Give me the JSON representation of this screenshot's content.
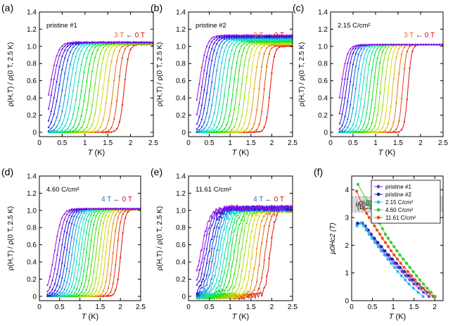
{
  "chart_data": [
    {
      "type": "line",
      "panel_label": "(a)",
      "sample_label": "pristine #1",
      "field_label": {
        "high": "3 T",
        "arrow": "←",
        "low": "0 T"
      },
      "title": "",
      "xlabel": "T (K)",
      "ylabel": "ρ(H,T) / ρ(0 T, 2.5 K)",
      "xlim": [
        0,
        2.5
      ],
      "ylim": [
        -0.05,
        1.4
      ],
      "xticks": [
        0,
        0.5,
        1.0,
        1.5,
        2.0,
        2.5
      ],
      "yticks": [
        0,
        0.2,
        0.4,
        0.6,
        0.8,
        1.0,
        1.2,
        1.4
      ],
      "xtick_labels": [
        "0",
        "0.5",
        "1",
        "1.5",
        "2",
        "2.5"
      ],
      "ytick_labels": [
        "0",
        "0.2",
        "0.4",
        "0.6",
        "0.8",
        "1.0",
        "1.2",
        "1.4"
      ],
      "curve_count": 19,
      "transition_T": [
        1.86,
        1.73,
        1.62,
        1.5,
        1.4,
        1.3,
        1.21,
        1.11,
        1.02,
        0.93,
        0.84,
        0.75,
        0.67,
        0.59,
        0.51,
        0.43,
        0.36,
        0.29,
        0.23
      ],
      "transition_width": 0.05,
      "normal_state": 1.02,
      "normal_state_high": 1.05,
      "noise": 0.004
    },
    {
      "type": "line",
      "panel_label": "(b)",
      "sample_label": "pristine #2",
      "field_label": {
        "high": "3 T",
        "arrow": "←",
        "low": "0 T"
      },
      "title": "",
      "xlabel": "T (K)",
      "ylabel": "ρ(H,T) / ρ(0 T, 2.5 K)",
      "xlim": [
        0,
        2.5
      ],
      "ylim": [
        -0.05,
        1.4
      ],
      "xticks": [
        0,
        0.5,
        1.0,
        1.5,
        2.0,
        2.5
      ],
      "yticks": [
        0,
        0.2,
        0.4,
        0.6,
        0.8,
        1.0,
        1.2,
        1.4
      ],
      "xtick_labels": [
        "0",
        "0.5",
        "1",
        "1.5",
        "2",
        "2.5"
      ],
      "ytick_labels": [
        "0",
        "0.2",
        "0.4",
        "0.6",
        "0.8",
        "1.0",
        "1.2",
        "1.4"
      ],
      "curve_count": 19,
      "transition_T": [
        1.96,
        1.82,
        1.7,
        1.58,
        1.47,
        1.37,
        1.27,
        1.17,
        1.08,
        0.98,
        0.89,
        0.8,
        0.72,
        0.63,
        0.55,
        0.47,
        0.4,
        0.33,
        0.26
      ],
      "transition_width": 0.05,
      "normal_state": 1.0,
      "normal_state_high": 1.13,
      "noise": 0.004
    },
    {
      "type": "line",
      "panel_label": "(c)",
      "sample_label": "2.15 C/cm²",
      "field_label": {
        "high": "3 T",
        "arrow": "←",
        "low": "0 T"
      },
      "title": "",
      "xlabel": "T (K)",
      "ylabel": "ρ(H,T) / ρ(0 T, 2.5 K)",
      "xlim": [
        0,
        2.5
      ],
      "ylim": [
        -0.05,
        1.4
      ],
      "xticks": [
        0,
        0.5,
        1.0,
        1.5,
        2.0,
        2.5
      ],
      "yticks": [
        0,
        0.2,
        0.4,
        0.6,
        0.8,
        1.0,
        1.2,
        1.4
      ],
      "xtick_labels": [
        "0",
        "0.5",
        "1",
        "1.5",
        "2",
        "2.5"
      ],
      "ytick_labels": [
        "0",
        "0.2",
        "0.4",
        "0.6",
        "0.8",
        "1.0",
        "1.2",
        "1.4"
      ],
      "curve_count": 19,
      "transition_T": [
        1.72,
        1.6,
        1.49,
        1.38,
        1.29,
        1.2,
        1.11,
        1.03,
        0.95,
        0.87,
        0.79,
        0.71,
        0.64,
        0.56,
        0.49,
        0.42,
        0.35,
        0.29,
        0.23
      ],
      "transition_width": 0.04,
      "normal_state": 1.02,
      "normal_state_high": 1.02,
      "noise": 0.003
    },
    {
      "type": "line",
      "panel_label": "(d)",
      "sample_label": "4.60 C/cm²",
      "field_label": {
        "high": "4 T",
        "arrow": "←",
        "low": "0 T"
      },
      "title": "",
      "xlabel": "T (K)",
      "ylabel": "ρ(H,T) / ρ(0 T, 2.5 K)",
      "xlim": [
        0,
        2.5
      ],
      "ylim": [
        -0.05,
        1.4
      ],
      "xticks": [
        0,
        0.5,
        1.0,
        1.5,
        2.0,
        2.5
      ],
      "yticks": [
        0,
        0.2,
        0.4,
        0.6,
        0.8,
        1.0,
        1.2,
        1.4
      ],
      "xtick_labels": [
        "0",
        "0.5",
        "1",
        "1.5",
        "2",
        "2.5"
      ],
      "ytick_labels": [
        "0",
        "0.2",
        "0.4",
        "0.6",
        "0.8",
        "1.0",
        "1.2",
        "1.4"
      ],
      "curve_count": 22,
      "transition_T": [
        2.01,
        1.91,
        1.82,
        1.73,
        1.64,
        1.56,
        1.48,
        1.4,
        1.32,
        1.24,
        1.16,
        1.09,
        1.02,
        0.95,
        0.88,
        0.81,
        0.74,
        0.67,
        0.6,
        0.53,
        0.45,
        0.37
      ],
      "transition_width": 0.05,
      "normal_state": 1.01,
      "normal_state_high": 1.02,
      "noise": 0.004
    },
    {
      "type": "line",
      "panel_label": "(e)",
      "sample_label": "11.61 C/cm²",
      "field_label": {
        "high": "4 T",
        "arrow": "←",
        "low": "0 T"
      },
      "title": "",
      "xlabel": "T (K)",
      "ylabel": "ρ(H,T) / ρ(0 T, 2.5 K)",
      "xlim": [
        0,
        2.5
      ],
      "ylim": [
        -0.05,
        1.4
      ],
      "xticks": [
        0,
        0.5,
        1.0,
        1.5,
        2.0,
        2.5
      ],
      "yticks": [
        0,
        0.2,
        0.4,
        0.6,
        0.8,
        1.0,
        1.2,
        1.4
      ],
      "xtick_labels": [
        "0",
        "0.5",
        "1",
        "1.5",
        "2",
        "2.5"
      ],
      "ytick_labels": [
        "0",
        "0.2",
        "0.4",
        "0.6",
        "0.8",
        "1.0",
        "1.2",
        "1.4"
      ],
      "curve_count": 22,
      "transition_T": [
        1.96,
        1.84,
        1.73,
        1.63,
        1.53,
        1.44,
        1.35,
        1.26,
        1.18,
        1.1,
        1.02,
        0.95,
        0.88,
        0.81,
        0.74,
        0.68,
        0.61,
        0.55,
        0.49,
        0.42,
        0.36,
        0.3
      ],
      "transition_width": 0.06,
      "normal_state": 1.0,
      "normal_state_high": 1.03,
      "noise": 0.03
    },
    {
      "type": "line",
      "panel_label": "(f)",
      "title": "",
      "xlabel": "T (K)",
      "ylabel": "μ0Hc2 (T)",
      "xlim": [
        0,
        2.2
      ],
      "ylim": [
        0,
        4.5
      ],
      "xticks": [
        0,
        0.5,
        1.0,
        1.5,
        2.0
      ],
      "yticks": [
        0,
        1,
        2,
        3,
        4
      ],
      "xtick_labels": [
        "0",
        "0.5",
        "1",
        "1.5",
        "2"
      ],
      "ytick_labels": [
        "0",
        "1",
        "2",
        "3",
        "4"
      ],
      "pauli_band": {
        "ymin": 3.2,
        "ymax": 3.75,
        "label_top": "μ0HP",
        "label_bottom": "(BCS)"
      },
      "legend_position": "top-right",
      "series": [
        {
          "name": "pristine #1",
          "color": "#7a34d6",
          "x": [
            1.86,
            1.73,
            1.62,
            1.5,
            1.4,
            1.3,
            1.21,
            1.11,
            1.02,
            0.93,
            0.84,
            0.75,
            0.67,
            0.59,
            0.51,
            0.43,
            0.36,
            0.29,
            0.23,
            0.13
          ],
          "y": [
            0.15,
            0.3,
            0.45,
            0.6,
            0.75,
            0.9,
            1.05,
            1.2,
            1.35,
            1.5,
            1.65,
            1.8,
            1.95,
            2.1,
            2.25,
            2.4,
            2.55,
            2.7,
            2.8,
            2.75
          ]
        },
        {
          "name": "pristine #2",
          "color": "#1c22b8",
          "x": [
            1.96,
            1.82,
            1.7,
            1.58,
            1.47,
            1.37,
            1.27,
            1.17,
            1.08,
            0.98,
            0.89,
            0.8,
            0.72,
            0.63,
            0.55,
            0.47,
            0.4,
            0.33,
            0.26,
            0.14
          ],
          "y": [
            0.15,
            0.3,
            0.45,
            0.6,
            0.75,
            0.9,
            1.05,
            1.2,
            1.35,
            1.5,
            1.65,
            1.8,
            1.95,
            2.1,
            2.25,
            2.4,
            2.55,
            2.7,
            2.8,
            2.8
          ]
        },
        {
          "name": "2.15 C/cm²",
          "color": "#2fb6e8",
          "x": [
            1.72,
            1.6,
            1.49,
            1.38,
            1.29,
            1.2,
            1.11,
            1.03,
            0.95,
            0.87,
            0.79,
            0.71,
            0.64,
            0.56,
            0.49,
            0.42,
            0.35,
            0.29,
            0.23,
            0.13
          ],
          "y": [
            0.15,
            0.3,
            0.45,
            0.6,
            0.75,
            0.9,
            1.05,
            1.2,
            1.35,
            1.5,
            1.65,
            1.8,
            1.95,
            2.1,
            2.25,
            2.4,
            2.55,
            2.7,
            2.8,
            2.7
          ]
        },
        {
          "name": "4.60 C/cm²",
          "color": "#2fcc2f",
          "x": [
            2.01,
            1.91,
            1.82,
            1.73,
            1.64,
            1.56,
            1.48,
            1.4,
            1.32,
            1.24,
            1.16,
            1.09,
            1.02,
            0.95,
            0.88,
            0.81,
            0.74,
            0.67,
            0.6,
            0.53,
            0.45,
            0.37,
            0.15
          ],
          "y": [
            0.15,
            0.3,
            0.45,
            0.6,
            0.75,
            0.9,
            1.05,
            1.2,
            1.35,
            1.5,
            1.65,
            1.8,
            1.95,
            2.1,
            2.25,
            2.4,
            2.6,
            2.8,
            3.0,
            3.2,
            3.4,
            3.6,
            4.2
          ]
        },
        {
          "name": "11.61 C/cm²",
          "color": "#e6501c",
          "x": [
            1.96,
            1.84,
            1.73,
            1.63,
            1.53,
            1.44,
            1.35,
            1.26,
            1.18,
            1.1,
            1.02,
            0.95,
            0.88,
            0.81,
            0.74,
            0.68,
            0.61,
            0.55,
            0.49,
            0.42,
            0.36,
            0.3,
            0.12
          ],
          "y": [
            0.15,
            0.3,
            0.45,
            0.6,
            0.75,
            0.9,
            1.05,
            1.2,
            1.35,
            1.5,
            1.65,
            1.8,
            1.95,
            2.1,
            2.25,
            2.4,
            2.55,
            2.7,
            2.85,
            3.0,
            3.15,
            3.3,
            3.95
          ]
        }
      ]
    }
  ]
}
